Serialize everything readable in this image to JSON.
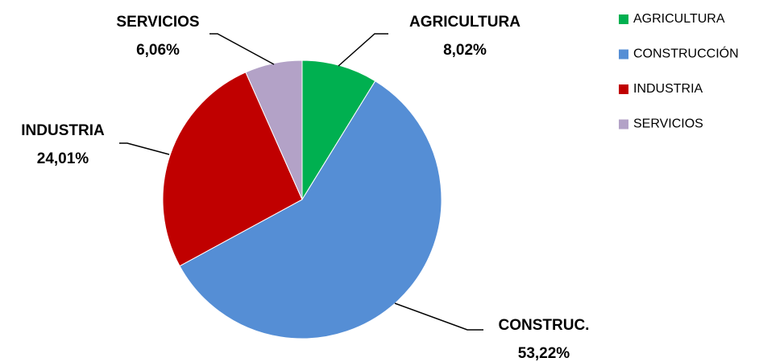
{
  "chart_data": {
    "type": "pie",
    "categories": [
      "AGRICULTURA",
      "CONSTRUCCIÓN",
      "INDUSTRIA",
      "SERVICIOS"
    ],
    "label_names": [
      "AGRICULTURA",
      "CONSTRUC.",
      "INDUSTRIA",
      "SERVICIOS"
    ],
    "values": [
      8.02,
      53.22,
      24.01,
      6.06
    ],
    "value_labels": [
      "8,02%",
      "53,22%",
      "24,01%",
      "6,06%"
    ],
    "colors": [
      "#00b050",
      "#558ed5",
      "#c00000",
      "#b3a2c7"
    ],
    "legend": "right"
  }
}
